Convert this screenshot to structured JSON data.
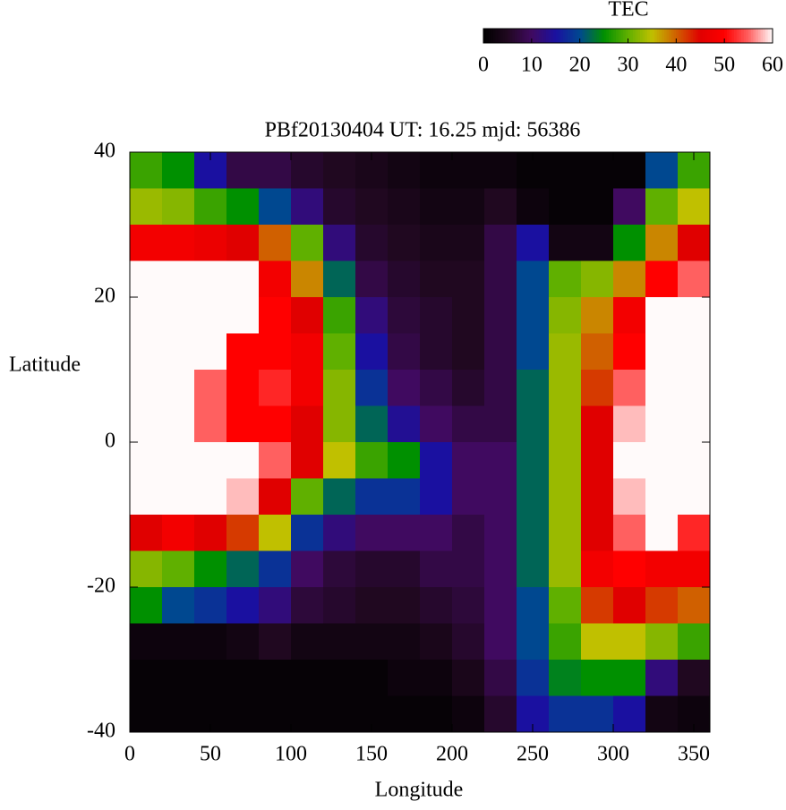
{
  "chart_data": {
    "type": "heatmap",
    "title": "PBf20130404  UT: 16.25  mjd: 56386",
    "xlabel": "Longitude",
    "ylabel": "Latitude",
    "zlabel": "TEC",
    "xlim": [
      0,
      360
    ],
    "ylim": [
      -40,
      40
    ],
    "zlim": [
      0,
      60
    ],
    "xticks": [
      0,
      50,
      100,
      150,
      200,
      250,
      300,
      350
    ],
    "yticks": [
      -40,
      -20,
      0,
      20,
      40
    ],
    "zticks": [
      0,
      10,
      20,
      30,
      40,
      50,
      60
    ],
    "colormap": [
      "#000000",
      "#200820",
      "#400a60",
      "#1a10a0",
      "#004890",
      "#009000",
      "#60b000",
      "#c0c000",
      "#d06000",
      "#e00000",
      "#ff0000",
      "#ff6060",
      "#fffafa"
    ],
    "x": [
      10,
      30,
      50,
      70,
      90,
      110,
      130,
      150,
      170,
      190,
      210,
      230,
      250,
      270,
      290,
      310,
      330,
      350
    ],
    "y": [
      37.5,
      32.5,
      27.5,
      22.5,
      17.5,
      12.5,
      7.5,
      2.5,
      -2.5,
      -7.5,
      -12.5,
      -17.5,
      -22.5,
      -27.5,
      -32.5,
      -37.5
    ],
    "values": [
      [
        28,
        25,
        15,
        8,
        8,
        6,
        5,
        4,
        3,
        2,
        2,
        2,
        1,
        1,
        1,
        1,
        20,
        28
      ],
      [
        33,
        32,
        28,
        25,
        20,
        12,
        6,
        5,
        4,
        3,
        3,
        5,
        2,
        1,
        1,
        10,
        30,
        35
      ],
      [
        48,
        48,
        47,
        45,
        40,
        30,
        12,
        6,
        5,
        4,
        4,
        8,
        15,
        3,
        3,
        25,
        38,
        45
      ],
      [
        60,
        60,
        60,
        60,
        48,
        38,
        22,
        8,
        6,
        5,
        5,
        8,
        20,
        30,
        32,
        38,
        50,
        55
      ],
      [
        60,
        60,
        60,
        60,
        50,
        45,
        28,
        12,
        7,
        6,
        5,
        8,
        20,
        32,
        38,
        48,
        60,
        60
      ],
      [
        60,
        60,
        60,
        50,
        50,
        48,
        30,
        15,
        8,
        6,
        5,
        8,
        20,
        33,
        40,
        50,
        60,
        60
      ],
      [
        60,
        60,
        55,
        50,
        52,
        48,
        32,
        18,
        10,
        8,
        6,
        8,
        22,
        33,
        42,
        55,
        60,
        60
      ],
      [
        60,
        60,
        55,
        50,
        50,
        45,
        32,
        22,
        14,
        10,
        8,
        8,
        22,
        33,
        45,
        58,
        60,
        60
      ],
      [
        60,
        60,
        60,
        60,
        55,
        45,
        35,
        28,
        25,
        15,
        10,
        10,
        22,
        33,
        45,
        60,
        60,
        60
      ],
      [
        60,
        60,
        60,
        58,
        45,
        30,
        22,
        18,
        18,
        15,
        10,
        10,
        22,
        33,
        45,
        58,
        60,
        60
      ],
      [
        45,
        48,
        45,
        42,
        35,
        18,
        12,
        10,
        10,
        10,
        8,
        10,
        22,
        33,
        45,
        55,
        60,
        52
      ],
      [
        32,
        30,
        25,
        22,
        18,
        10,
        7,
        6,
        6,
        8,
        8,
        10,
        22,
        33,
        48,
        50,
        48,
        48
      ],
      [
        25,
        20,
        18,
        15,
        12,
        7,
        6,
        5,
        5,
        6,
        7,
        10,
        20,
        30,
        42,
        45,
        42,
        40
      ],
      [
        2,
        2,
        2,
        3,
        5,
        3,
        3,
        3,
        3,
        4,
        6,
        10,
        20,
        28,
        35,
        35,
        32,
        28
      ],
      [
        1,
        1,
        1,
        1,
        1,
        1,
        1,
        1,
        2,
        2,
        4,
        8,
        18,
        24,
        25,
        25,
        12,
        5
      ],
      [
        1,
        1,
        1,
        1,
        1,
        1,
        1,
        1,
        1,
        1,
        2,
        6,
        15,
        18,
        18,
        15,
        3,
        2
      ]
    ]
  }
}
